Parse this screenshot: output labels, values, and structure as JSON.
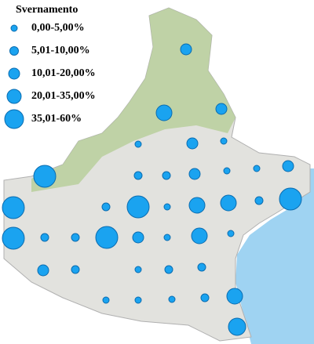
{
  "legend": {
    "title": "Svernamento",
    "entries": [
      "0,00-5,00%",
      "5,01-10,00%",
      "10,01-20,00%",
      "20,01-35,00%",
      "35,01-60%"
    ]
  }
}
